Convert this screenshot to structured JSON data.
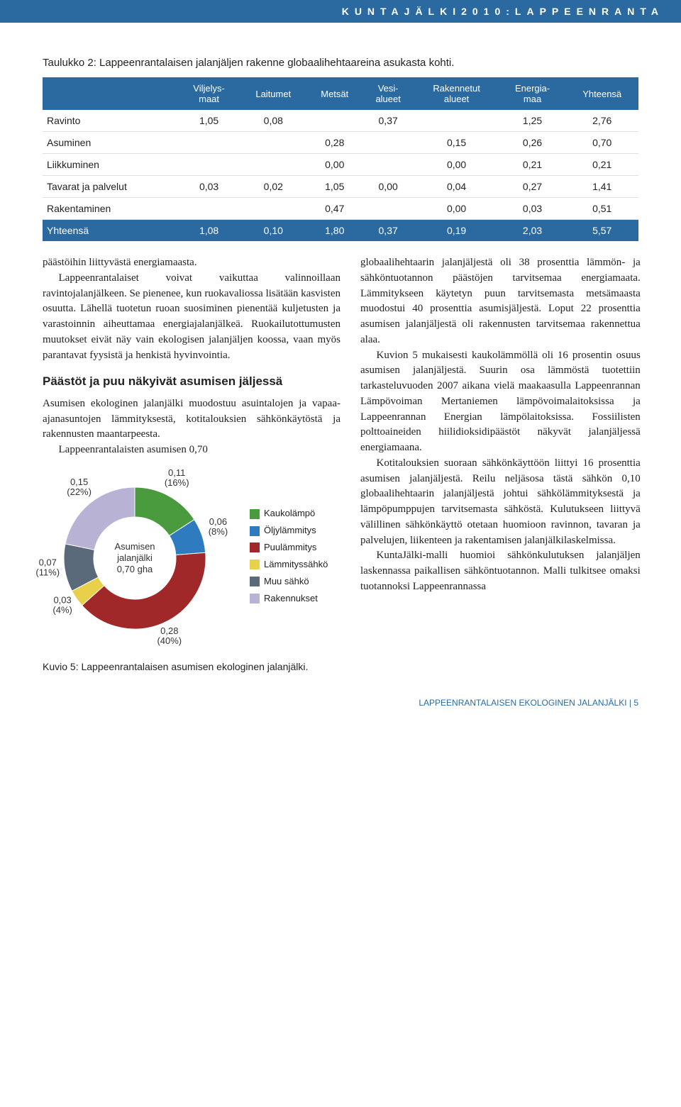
{
  "header": {
    "title": "KUNTAJÄLKI2010:LAPPEENRANTA"
  },
  "table": {
    "caption": "Taulukko 2: Lappeenrantalaisen jalanjäljen rakenne globaalihehtaareina asukasta kohti.",
    "columns": [
      "",
      "Viljelys-\nmaat",
      "Laitumet",
      "Metsät",
      "Vesi-\nalueet",
      "Rakennetut\nalueet",
      "Energia-\nmaa",
      "Yhteensä"
    ],
    "rows": [
      [
        "Ravinto",
        "1,05",
        "0,08",
        "",
        "0,37",
        "",
        "1,25",
        "2,76"
      ],
      [
        "Asuminen",
        "",
        "",
        "0,28",
        "",
        "0,15",
        "0,26",
        "0,70"
      ],
      [
        "Liikkuminen",
        "",
        "",
        "0,00",
        "",
        "0,00",
        "0,21",
        "0,21"
      ],
      [
        "Tavarat ja palvelut",
        "0,03",
        "0,02",
        "1,05",
        "0,00",
        "0,04",
        "0,27",
        "1,41"
      ],
      [
        "Rakentaminen",
        "",
        "",
        "0,47",
        "",
        "0,00",
        "0,03",
        "0,51"
      ]
    ],
    "total": [
      "Yhteensä",
      "1,08",
      "0,10",
      "1,80",
      "0,37",
      "0,19",
      "2,03",
      "5,57"
    ]
  },
  "left": {
    "p1": "päästöihin liittyvästä energiamaasta.",
    "p2": "Lappeenrantalaiset voivat vaikuttaa valinnoillaan ravintojalanjälkeen. Se pienenee, kun ruokavaliossa lisätään kasvisten osuutta. Lähellä tuotetun ruoan suosiminen pienentää kuljetusten ja varastoinnin aiheuttamaa energiajalanjälkeä. Ruokailutottumusten muutokset eivät näy vain ekologisen jalanjäljen koossa, vaan myös parantavat fyysistä ja henkistä hyvinvointia.",
    "subhead": "Päästöt ja puu näkyivät asumisen jäljessä",
    "p3": "Asumisen ekologinen jalanjälki muodostuu asuintalojen ja vapaa-ajanasuntojen lämmityksestä, kotitalouksien sähkönkäytöstä ja rakennusten maantarpeesta.",
    "p4": "Lappeenrantalaisten asumisen 0,70"
  },
  "right": {
    "p1": "globaalihehtaarin jalanjäljestä oli 38 prosenttia lämmön- ja sähköntuotannon päästöjen tarvitsemaa energiamaata. Lämmitykseen käytetyn puun tarvitsemasta metsämaasta muodostui 40 prosenttia asumisjäljestä. Loput 22 prosenttia asumisen jalanjäljestä oli rakennusten tarvitsemaa rakennettua alaa.",
    "p2": "Kuvion 5 mukaisesti kaukolämmöllä oli 16 prosentin osuus asumisen jalanjäljestä. Suurin osa lämmöstä tuotettiin tarkasteluvuoden 2007 aikana vielä maakaasulla Lappeenrannan Lämpövoiman Mertaniemen lämpövoimalaitoksissa ja Lappeenrannan Energian lämpölaitoksissa. Fossiilisten polttoaineiden hiilidioksidipäästöt näkyvät jalanjäljessä energiamaana.",
    "p3": "Kotitalouksien suoraan sähkönkäyttöön liittyi 16 prosenttia asumisen jalanjäljestä. Reilu neljäsosa tästä sähkön 0,10 globaalihehtaarin jalanjäljestä johtui sähkölämmityksestä ja lämpöpumppujen tarvitsemasta sähköstä. Kulutukseen liittyvä välillinen sähkönkäyttö otetaan huomioon ravinnon, tavaran ja palvelujen, liikenteen ja rakentamisen jalanjälkilaskelmissa.",
    "p4": "KuntaJälki-malli huomioi sähkönkulutuksen jalanjäljen laskennassa paikallisen sähköntuotannon. Malli tulkitsee omaksi tuotannoksi Lappeenrannassa"
  },
  "chart": {
    "type": "donut",
    "center_label1": "Asumisen",
    "center_label2": "jalanjälki",
    "center_label3": "0,70 gha",
    "caption": "Kuvio 5: Lappeenrantalaisen asumisen ekologinen jalanjälki.",
    "slices": [
      {
        "label": "Kaukolämpö",
        "value": 0.11,
        "pct": 16,
        "color": "#4a9b3e",
        "text": "0,11\n(16%)"
      },
      {
        "label": "Öljylämmitys",
        "value": 0.06,
        "pct": 8,
        "color": "#2f7bbf",
        "text": "0,06\n(8%)"
      },
      {
        "label": "Puulämmitys",
        "value": 0.28,
        "pct": 40,
        "color": "#a02828",
        "text": "0,28\n(40%)"
      },
      {
        "label": "Lämmityssähkö",
        "value": 0.03,
        "pct": 4,
        "color": "#e8d04a",
        "text": "0,03\n(4%)"
      },
      {
        "label": "Muu sähkö",
        "value": 0.07,
        "pct": 11,
        "color": "#5a6a7a",
        "text": "0,07\n(11%)"
      },
      {
        "label": "Rakennukset",
        "value": 0.15,
        "pct": 22,
        "color": "#b8b2d4",
        "text": "0,15\n(22%)"
      }
    ],
    "background_color": "#ffffff",
    "label_fontfamily": "Arial",
    "label_fontsize": 13,
    "label_color": "#333333",
    "ring_outer_r": 100,
    "ring_inner_r": 58
  },
  "footer": {
    "text": "LAPPEENRANTALAISEN EKOLOGINEN JALANJÄLKI | 5"
  }
}
